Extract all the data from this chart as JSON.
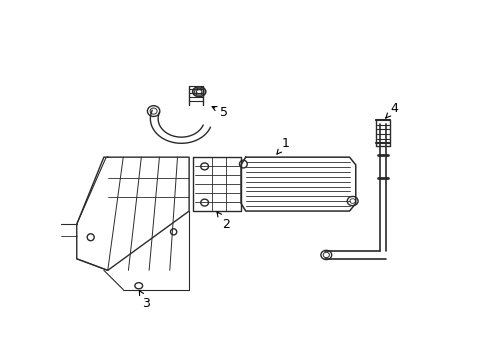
{
  "background_color": "#ffffff",
  "line_color": "#2a2a2a",
  "line_width": 1.0,
  "label_color": "#000000",
  "label_fontsize": 9,
  "fig_width": 4.9,
  "fig_height": 3.6,
  "dpi": 100
}
